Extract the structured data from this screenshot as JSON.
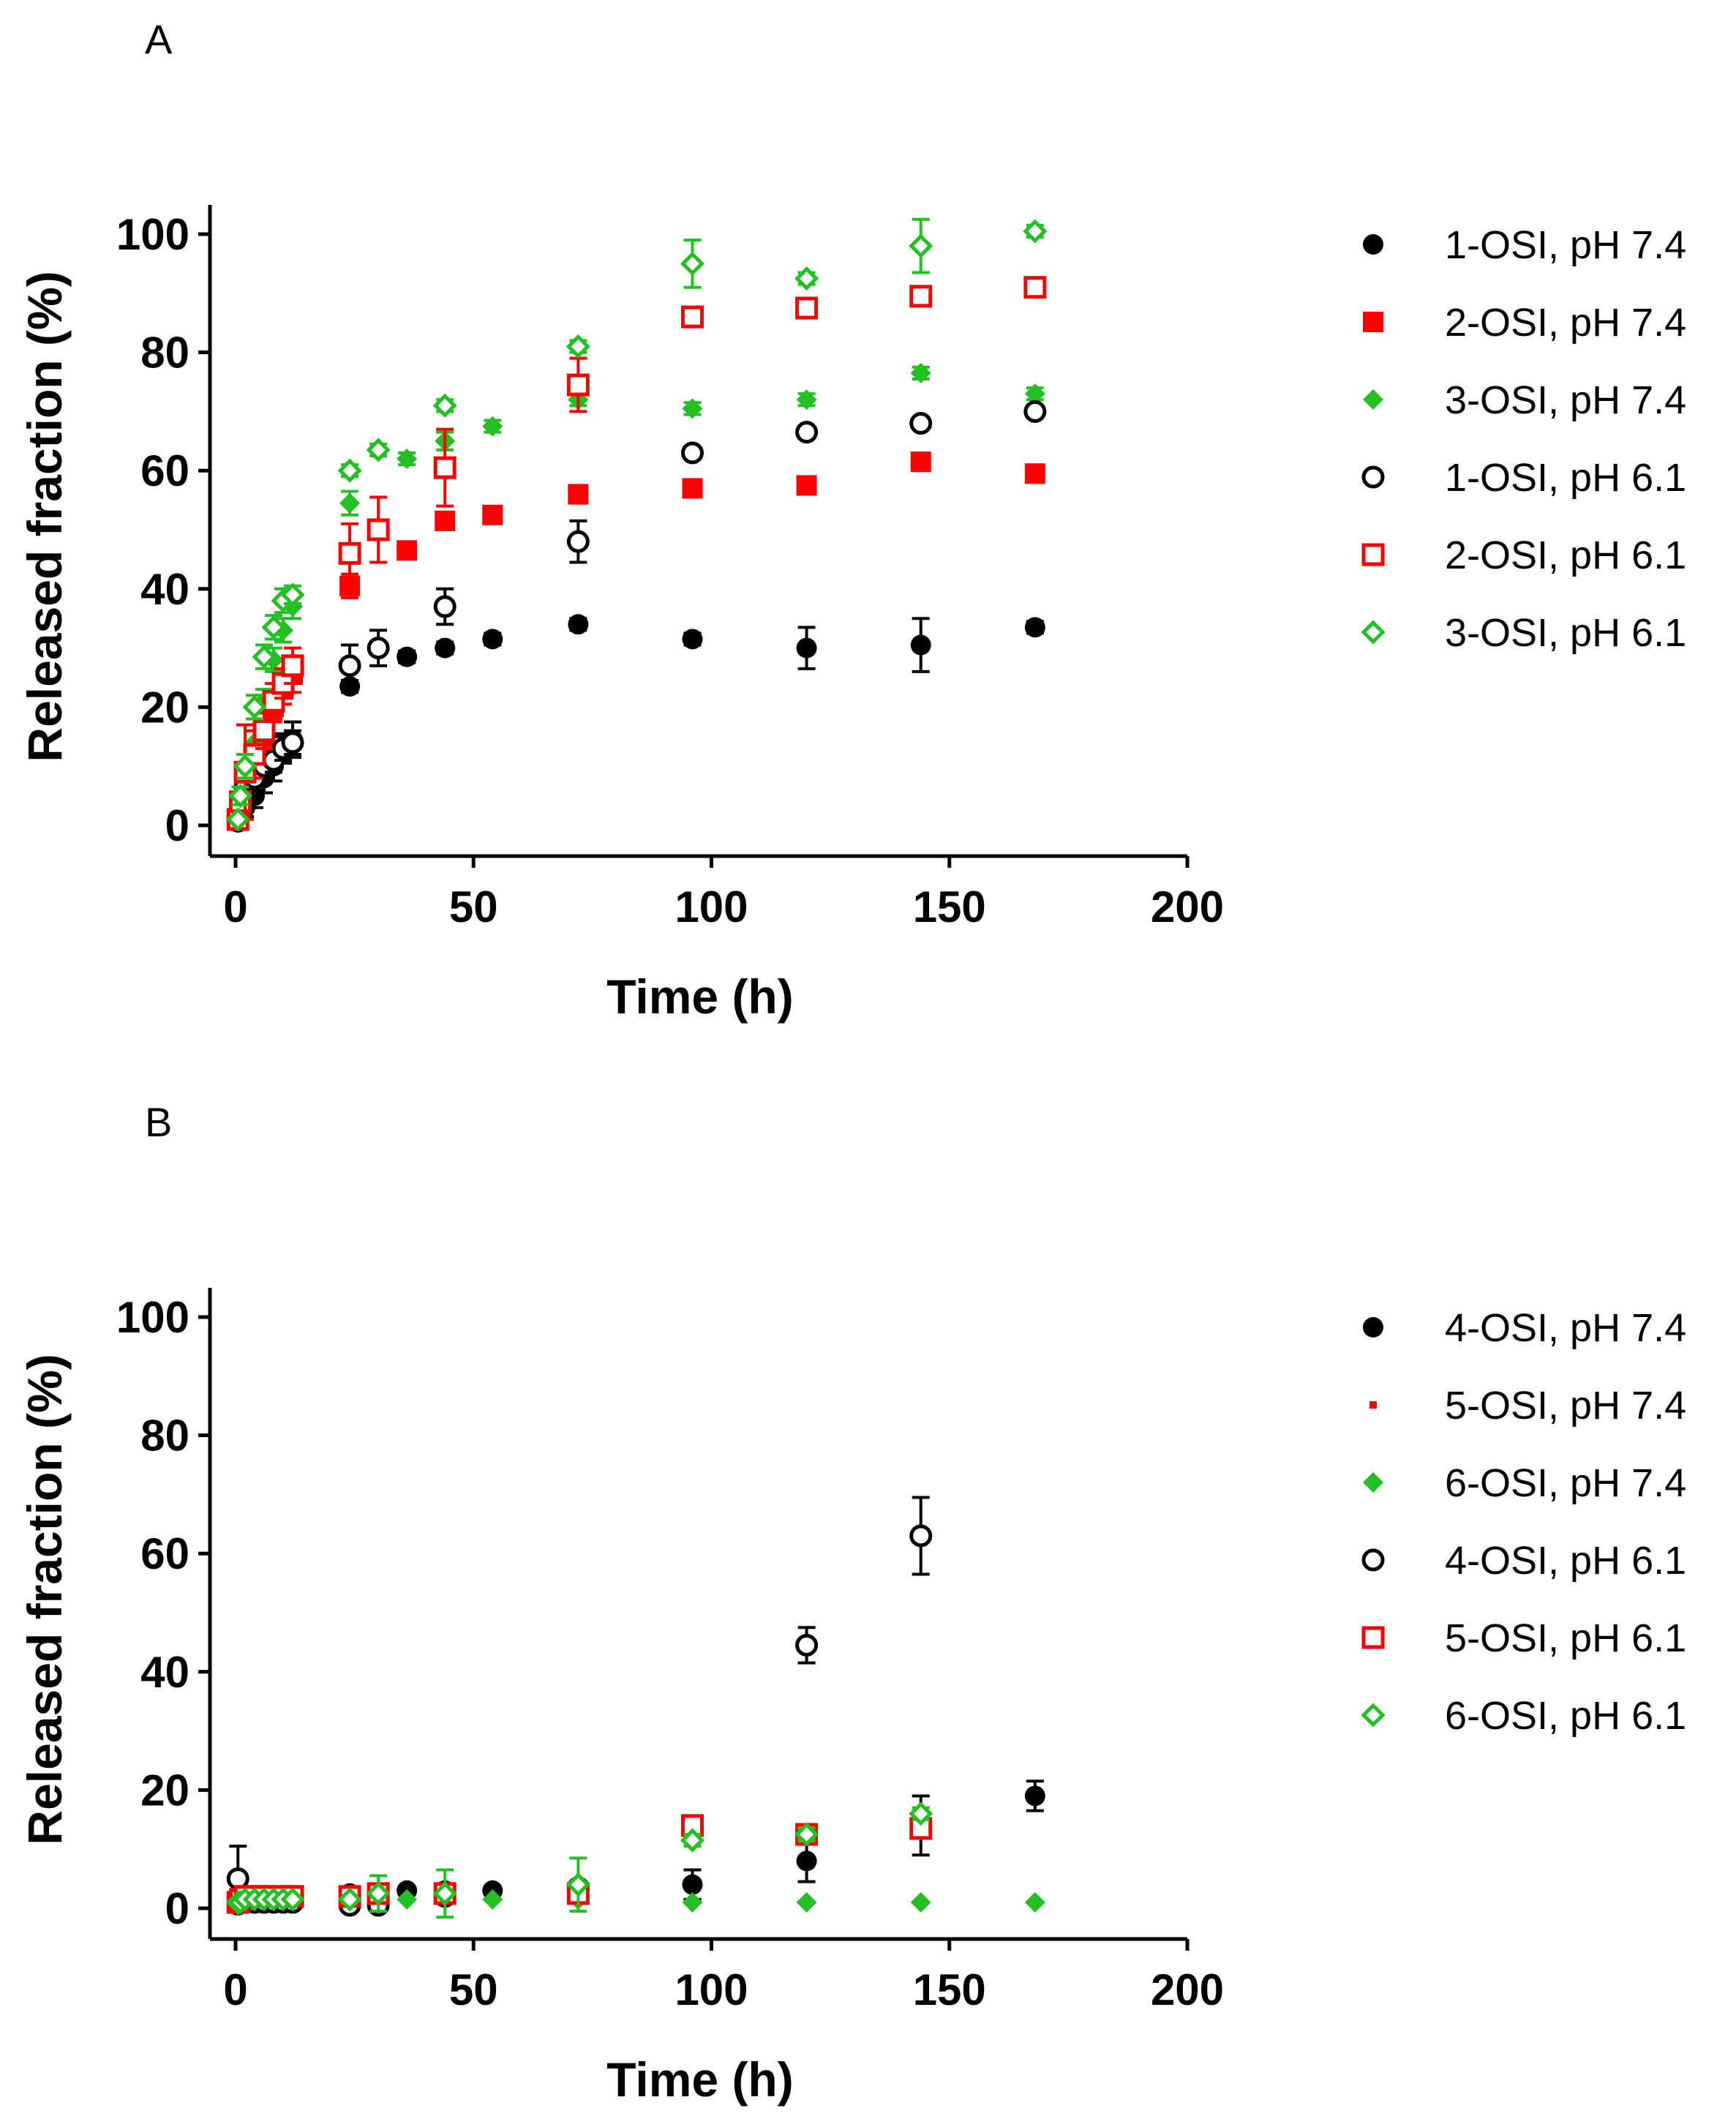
{
  "chart_data": [
    {
      "panel": "A",
      "type": "scatter",
      "xlabel": "Time (h)",
      "ylabel": "Released fraction (%)",
      "xlim": [
        0,
        200
      ],
      "ylim": [
        0,
        100
      ],
      "xticks": [
        0,
        50,
        100,
        150,
        200
      ],
      "yticks": [
        0,
        20,
        40,
        60,
        80,
        100
      ],
      "legend_position": "right",
      "series": [
        {
          "name": "1-OSI, pH 7.4",
          "marker": "circle",
          "filled": true,
          "color": "#000000",
          "x": [
            0.5,
            1,
            2,
            4,
            6,
            8,
            10,
            12,
            24,
            36,
            44,
            54,
            72,
            96,
            120,
            144,
            168
          ],
          "y": [
            0.5,
            2,
            3,
            5,
            8,
            10,
            13,
            14.5,
            23.5,
            28.5,
            30,
            31.5,
            34,
            31.5,
            30,
            30.5,
            33.5
          ],
          "err": [
            0.5,
            1,
            1.5,
            2,
            2.5,
            2.5,
            2.5,
            3,
            1,
            1,
            1,
            1,
            1,
            1,
            3.5,
            4.5,
            1
          ]
        },
        {
          "name": "2-OSI, pH 7.4",
          "marker": "square",
          "filled": true,
          "color": "#ff0000",
          "x": [
            0.5,
            1,
            2,
            4,
            6,
            8,
            10,
            12,
            24,
            36,
            44,
            54,
            72,
            96,
            120,
            144,
            168
          ],
          "y": [
            1,
            3,
            7,
            11,
            15,
            20,
            23,
            25.5,
            40.5,
            46.5,
            51.5,
            52.5,
            56,
            57,
            57.5,
            61.5,
            59.5
          ],
          "err": [
            0.5,
            1,
            1.5,
            2,
            2.5,
            2.5,
            2.5,
            3,
            2,
            1,
            1,
            1,
            1.5,
            1,
            1,
            1,
            1
          ]
        },
        {
          "name": "3-OSI, pH 7.4",
          "marker": "diamond",
          "filled": true,
          "color": "#22c022",
          "x": [
            0.5,
            1,
            2,
            4,
            6,
            8,
            10,
            12,
            24,
            36,
            44,
            54,
            72,
            96,
            120,
            144,
            168
          ],
          "y": [
            1,
            4,
            8,
            14,
            21,
            28,
            33,
            37,
            54.5,
            62,
            65,
            67.5,
            72,
            70.5,
            72,
            76.5,
            73
          ],
          "err": [
            0.5,
            1,
            1.5,
            2,
            2,
            2,
            2,
            2,
            2,
            1,
            1.5,
            1,
            1,
            1,
            1,
            1,
            1
          ]
        },
        {
          "name": "1-OSI, pH 6.1",
          "marker": "circle",
          "filled": false,
          "color": "#000000",
          "x": [
            0.5,
            1,
            2,
            4,
            6,
            8,
            10,
            12,
            24,
            30,
            44,
            72,
            96,
            120,
            144,
            168
          ],
          "y": [
            1,
            3,
            6.5,
            8,
            10,
            11,
            13,
            14,
            27,
            30,
            37,
            48,
            63,
            66.5,
            68,
            70
          ],
          "err": [
            0.5,
            1,
            1.5,
            2,
            2,
            2,
            2,
            2,
            3.5,
            3,
            3,
            3.5,
            1,
            1,
            1,
            1
          ]
        },
        {
          "name": "2-OSI, pH 6.1",
          "marker": "square",
          "filled": false,
          "color": "#ff0000",
          "x": [
            0.5,
            1,
            2,
            4,
            6,
            8,
            10,
            12,
            24,
            30,
            44,
            72,
            96,
            120,
            144,
            168
          ],
          "y": [
            1,
            4,
            9,
            12,
            16,
            21,
            24,
            27,
            46,
            50,
            60.5,
            74.5,
            86,
            87.5,
            89.5,
            91
          ],
          "err": [
            0.5,
            1.5,
            8,
            4,
            3,
            3,
            2.5,
            3,
            5,
            5.5,
            6.5,
            4.5,
            1,
            1,
            1,
            1
          ]
        },
        {
          "name": "3-OSI, pH 6.1",
          "marker": "diamond",
          "filled": false,
          "color": "#22c022",
          "x": [
            0.5,
            1,
            2,
            4,
            6,
            8,
            10,
            12,
            24,
            30,
            44,
            72,
            96,
            120,
            144,
            168
          ],
          "y": [
            1,
            5,
            10,
            20,
            28.5,
            33.5,
            38,
            39,
            60,
            63.5,
            71,
            81,
            95,
            92.5,
            98,
            100.5
          ],
          "err": [
            0.5,
            1.5,
            2,
            2,
            2,
            2,
            2,
            1.5,
            1,
            1,
            1,
            1,
            4,
            1,
            4.5,
            1
          ]
        }
      ]
    },
    {
      "panel": "B",
      "type": "scatter",
      "xlabel": "Time (h)",
      "ylabel": "Released fraction (%)",
      "xlim": [
        0,
        200
      ],
      "ylim": [
        0,
        100
      ],
      "xticks": [
        0,
        50,
        100,
        150,
        200
      ],
      "yticks": [
        0,
        20,
        40,
        60,
        80,
        100
      ],
      "legend_position": "right",
      "series": [
        {
          "name": "4-OSI, pH 7.4",
          "marker": "circle",
          "filled": true,
          "color": "#000000",
          "x": [
            0.5,
            1,
            2,
            4,
            6,
            8,
            10,
            12,
            24,
            30,
            36,
            44,
            54,
            72,
            96,
            120,
            144,
            168
          ],
          "y": [
            0.5,
            1,
            1,
            1,
            1,
            1,
            1.5,
            1.5,
            2.5,
            1,
            3,
            3,
            3,
            3.5,
            4,
            8,
            14,
            19
          ],
          "err": [
            0.3,
            0.5,
            0.5,
            0.5,
            0.5,
            0.5,
            0.5,
            0.5,
            1,
            0.5,
            0.5,
            1,
            0.5,
            1,
            2.5,
            3.5,
            5,
            2.5
          ]
        },
        {
          "name": "5-OSI, pH 7.4",
          "marker": "square-small",
          "filled": true,
          "color": "#ff0000",
          "x": [
            0.5,
            1,
            2,
            4,
            6,
            8,
            10,
            12,
            24,
            30,
            44,
            72,
            96,
            120,
            144,
            168
          ],
          "y": [
            0.5,
            1,
            1,
            1,
            1,
            1,
            1,
            1,
            1,
            1,
            1,
            1,
            1,
            1,
            1,
            1
          ],
          "err": [
            0,
            0,
            0,
            0,
            0,
            0,
            0,
            0,
            0,
            0,
            0,
            0,
            0,
            0,
            0,
            0
          ]
        },
        {
          "name": "6-OSI, pH 7.4",
          "marker": "diamond",
          "filled": true,
          "color": "#22c022",
          "x": [
            0.5,
            1,
            2,
            4,
            6,
            8,
            10,
            12,
            24,
            30,
            36,
            44,
            54,
            72,
            96,
            120,
            144,
            168
          ],
          "y": [
            0.5,
            1,
            1,
            1,
            1,
            1,
            1,
            1,
            1.5,
            1.5,
            1.5,
            1.5,
            1.5,
            1.5,
            1,
            1,
            1,
            1
          ],
          "err": [
            0.3,
            0.5,
            0.5,
            0.5,
            0.5,
            0.5,
            0.5,
            0.5,
            0.5,
            0.5,
            0.5,
            0.5,
            0.5,
            0.5,
            0,
            0,
            0,
            0
          ]
        },
        {
          "name": "4-OSI, pH 6.1",
          "marker": "circle",
          "filled": false,
          "color": "#000000",
          "x": [
            0.5,
            1,
            2,
            4,
            6,
            8,
            10,
            12,
            24,
            30,
            44,
            72,
            120,
            144
          ],
          "y": [
            5,
            1,
            1,
            1,
            1,
            1,
            1,
            1,
            0.5,
            0.5,
            2,
            3.5,
            44.5,
            63
          ],
          "err": [
            5.5,
            0.5,
            0.5,
            0.5,
            0.5,
            0.5,
            0.5,
            0.5,
            0.5,
            0.5,
            1,
            1,
            3,
            6.5
          ]
        },
        {
          "name": "5-OSI, pH 6.1",
          "marker": "square",
          "filled": false,
          "color": "#ff0000",
          "x": [
            0.5,
            1,
            2,
            4,
            6,
            8,
            10,
            12,
            24,
            30,
            44,
            72,
            96,
            120,
            144
          ],
          "y": [
            1,
            1.5,
            2,
            2,
            2,
            2,
            2,
            2,
            2,
            2.5,
            2.5,
            2.5,
            14,
            12.5,
            13.5
          ],
          "err": [
            0.5,
            1,
            1,
            1,
            1,
            1,
            1,
            1,
            1,
            1,
            1,
            1,
            1,
            1,
            1
          ]
        },
        {
          "name": "6-OSI, pH 6.1",
          "marker": "diamond",
          "filled": false,
          "color": "#22c022",
          "x": [
            0.5,
            1,
            2,
            4,
            6,
            8,
            10,
            12,
            24,
            30,
            44,
            72,
            96,
            120,
            144
          ],
          "y": [
            1,
            1,
            1.5,
            1.5,
            1.5,
            1.5,
            1.5,
            1.5,
            1.5,
            2.5,
            2.5,
            4,
            11.5,
            12.5,
            16
          ],
          "err": [
            0.5,
            0.5,
            0.5,
            0.5,
            0.5,
            0.5,
            0.5,
            0.5,
            0.5,
            3,
            4,
            4.5,
            1,
            1,
            1
          ]
        }
      ]
    }
  ]
}
